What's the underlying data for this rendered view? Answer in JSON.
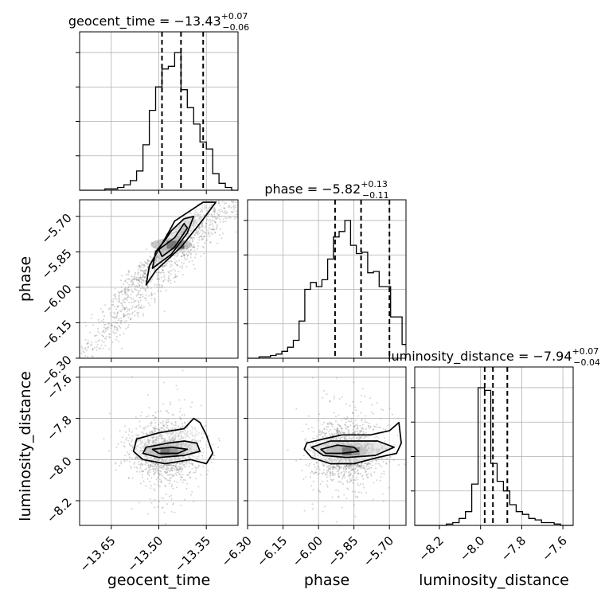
{
  "chart_data": {
    "type": "corner",
    "parameters": [
      {
        "name": "geocent_time",
        "axis_range": [
          -13.75,
          -13.25
        ],
        "ticks": [
          -13.65,
          -13.5,
          -13.35
        ],
        "tick_labels": [
          "−13.65",
          "−13.50",
          "−13.35"
        ],
        "title_main": "geocent_time = −13.43",
        "title_sup": "+0.07",
        "title_sub": "−0.06",
        "quantiles": [
          -13.49,
          -13.43,
          -13.36
        ],
        "hist_bins": [
          -13.75,
          -13.73,
          -13.71,
          -13.69,
          -13.67,
          -13.65,
          -13.63,
          -13.61,
          -13.59,
          -13.57,
          -13.55,
          -13.53,
          -13.51,
          -13.49,
          -13.47,
          -13.45,
          -13.43,
          -13.41,
          -13.39,
          -13.37,
          -13.35,
          -13.33,
          -13.31,
          -13.29,
          -13.27,
          -13.25
        ],
        "hist_counts": [
          0,
          0,
          0,
          0,
          1,
          1,
          2,
          4,
          7,
          14,
          33,
          58,
          75,
          88,
          90,
          100,
          73,
          60,
          48,
          35,
          30,
          12,
          5,
          2,
          0
        ]
      },
      {
        "name": "phase",
        "axis_range": [
          -6.3,
          -5.63
        ],
        "ticks": [
          -6.3,
          -6.15,
          -6.0,
          -5.85,
          -5.7
        ],
        "tick_labels": [
          "−6.30",
          "−6.15",
          "−6.00",
          "−5.85",
          "−5.70"
        ],
        "title_main": "phase = −5.82",
        "title_sup": "+0.13",
        "title_sub": "−0.11",
        "quantiles": [
          -5.93,
          -5.82,
          -5.7
        ],
        "hist_bins": [
          -6.3,
          -6.2758,
          -6.2516,
          -6.2274,
          -6.2032,
          -6.179,
          -6.1548,
          -6.1306,
          -6.1064,
          -6.0822,
          -6.058,
          -6.0338,
          -6.0096,
          -5.9854,
          -5.9612,
          -5.937,
          -5.9128,
          -5.8886,
          -5.8644,
          -5.8402,
          -5.816,
          -5.7918,
          -5.7676,
          -5.7434,
          -5.7192,
          -5.695,
          -5.6708,
          -5.6466,
          -5.63
        ],
        "hist_counts": [
          0,
          0,
          1,
          1,
          2,
          3,
          5,
          8,
          13,
          27,
          50,
          55,
          52,
          57,
          72,
          88,
          92,
          100,
          82,
          76,
          77,
          62,
          63,
          52,
          52,
          30,
          30,
          10
        ]
      },
      {
        "name": "luminosity_distance",
        "axis_range": [
          -8.32,
          -7.55
        ],
        "ticks": [
          -8.2,
          -8.0,
          -7.8,
          -7.6
        ],
        "tick_labels": [
          "−8.2",
          "−8.0",
          "−7.8",
          "−7.6"
        ],
        "title_main": "luminosity_distance = −7.94",
        "title_sup": "+0.07",
        "title_sub": "−0.04",
        "quantiles": [
          -7.98,
          -7.94,
          -7.87
        ],
        "hist_bins": [
          -8.32,
          -8.2892,
          -8.2584,
          -8.2276,
          -8.1968,
          -8.166,
          -8.1352,
          -8.1044,
          -8.0736,
          -8.0428,
          -8.012,
          -7.9812,
          -7.9504,
          -7.9196,
          -7.8888,
          -7.858,
          -7.8272,
          -7.7964,
          -7.7656,
          -7.7348,
          -7.704,
          -7.6732,
          -7.6424,
          -7.6116,
          -7.5808,
          -7.55
        ],
        "hist_counts": [
          0,
          0,
          0,
          0,
          0,
          1,
          2,
          5,
          10,
          30,
          100,
          98,
          45,
          32,
          25,
          15,
          10,
          8,
          5,
          4,
          2,
          2,
          1,
          0,
          0
        ]
      }
    ],
    "pairs": [
      {
        "x_param": "geocent_time",
        "y_param": "phase",
        "y_tick_labels": [
          "−5.70",
          "−5.85",
          "−6.00",
          "−6.15",
          "−6.30"
        ],
        "scatter_trend": {
          "x": [
            -13.75,
            -13.25
          ],
          "y": [
            -6.31,
            -5.63
          ]
        },
        "contour_levels": [
          [
            [
              -13.45,
              -5.72
            ],
            [
              -13.36,
              -5.64
            ],
            [
              -13.32,
              -5.64
            ],
            [
              -13.37,
              -5.73
            ],
            [
              -13.43,
              -5.83
            ],
            [
              -13.51,
              -5.93
            ],
            [
              -13.54,
              -5.99
            ],
            [
              -13.53,
              -5.91
            ],
            [
              -13.5,
              -5.84
            ],
            [
              -13.47,
              -5.77
            ]
          ],
          [
            [
              -13.46,
              -5.76
            ],
            [
              -13.42,
              -5.71
            ],
            [
              -13.39,
              -5.7
            ],
            [
              -13.41,
              -5.77
            ],
            [
              -13.46,
              -5.86
            ],
            [
              -13.52,
              -5.92
            ],
            [
              -13.51,
              -5.85
            ],
            [
              -13.48,
              -5.8
            ]
          ],
          [
            [
              -13.45,
              -5.79
            ],
            [
              -13.42,
              -5.73
            ],
            [
              -13.41,
              -5.75
            ],
            [
              -13.45,
              -5.83
            ],
            [
              -13.49,
              -5.87
            ],
            [
              -13.5,
              -5.84
            ]
          ]
        ],
        "density_peak": [
          -13.46,
          -5.82
        ]
      },
      {
        "x_param": "geocent_time",
        "y_param": "luminosity_distance",
        "y_tick_labels": [
          "−7.6",
          "−7.8",
          "−8.0",
          "−8.2"
        ],
        "contour_levels": [
          [
            [
              -13.57,
              -7.9
            ],
            [
              -13.5,
              -7.87
            ],
            [
              -13.42,
              -7.85
            ],
            [
              -13.39,
              -7.8
            ],
            [
              -13.37,
              -7.82
            ],
            [
              -13.35,
              -7.88
            ],
            [
              -13.33,
              -7.97
            ],
            [
              -13.35,
              -8.02
            ],
            [
              -13.4,
              -8.0
            ],
            [
              -13.48,
              -8.02
            ],
            [
              -13.55,
              -8.0
            ],
            [
              -13.58,
              -7.96
            ]
          ],
          [
            [
              -13.54,
              -7.94
            ],
            [
              -13.47,
              -7.92
            ],
            [
              -13.42,
              -7.91
            ],
            [
              -13.38,
              -7.92
            ],
            [
              -13.37,
              -7.96
            ],
            [
              -13.42,
              -7.98
            ],
            [
              -13.5,
              -7.99
            ],
            [
              -13.55,
              -7.97
            ]
          ],
          [
            [
              -13.52,
              -7.95
            ],
            [
              -13.46,
              -7.94
            ],
            [
              -13.41,
              -7.95
            ],
            [
              -13.44,
              -7.97
            ],
            [
              -13.5,
              -7.97
            ]
          ]
        ],
        "density_peak": [
          -13.48,
          -7.96
        ]
      },
      {
        "x_param": "phase",
        "y_param": "luminosity_distance",
        "contour_levels": [
          [
            [
              -6.05,
              -7.92
            ],
            [
              -5.98,
              -7.9
            ],
            [
              -5.9,
              -7.88
            ],
            [
              -5.78,
              -7.88
            ],
            [
              -5.7,
              -7.86
            ],
            [
              -5.66,
              -7.82
            ],
            [
              -5.65,
              -7.92
            ],
            [
              -5.67,
              -7.97
            ],
            [
              -5.75,
              -7.99
            ],
            [
              -5.85,
              -8.02
            ],
            [
              -5.95,
              -8.02
            ],
            [
              -6.03,
              -7.99
            ],
            [
              -6.06,
              -7.95
            ]
          ],
          [
            [
              -6.03,
              -7.94
            ],
            [
              -5.95,
              -7.91
            ],
            [
              -5.85,
              -7.91
            ],
            [
              -5.75,
              -7.91
            ],
            [
              -5.68,
              -7.94
            ],
            [
              -5.76,
              -7.98
            ],
            [
              -5.88,
              -7.99
            ],
            [
              -5.98,
              -7.98
            ]
          ],
          [
            [
              -5.99,
              -7.95
            ],
            [
              -5.92,
              -7.93
            ],
            [
              -5.85,
              -7.94
            ],
            [
              -5.83,
              -7.96
            ],
            [
              -5.9,
              -7.97
            ],
            [
              -5.97,
              -7.97
            ]
          ]
        ],
        "density_peak": [
          -5.88,
          -7.96
        ]
      }
    ],
    "grid": true,
    "colors": {
      "line": "#000000",
      "grid": "#b0b0b0",
      "scatter": "#808080",
      "frame": "#000000"
    }
  }
}
